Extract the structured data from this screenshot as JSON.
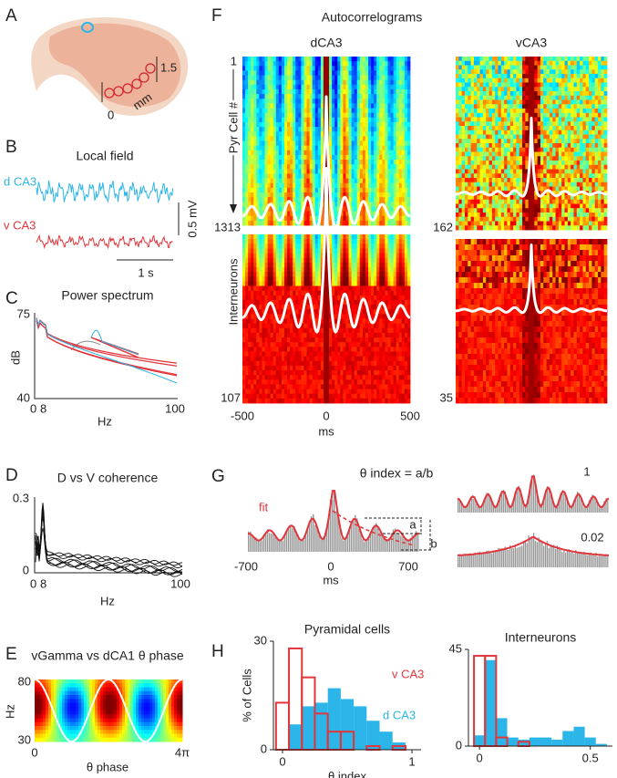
{
  "A": {
    "letter": "A",
    "scale_top": 1.5,
    "scale_bottom": 0,
    "unit": "mm"
  },
  "B": {
    "letter": "B",
    "title": "Local field",
    "dorsal": "d CA3",
    "ventral": "v CA3",
    "amplitude_bar": "0.5 mV",
    "time_bar": "1 s"
  },
  "C": {
    "letter": "C",
    "title": "Power spectrum",
    "ylabel": "dB",
    "y_top": 75,
    "y_bottom": 40,
    "x_ticks": [
      0,
      8,
      100
    ],
    "xlabel": "Hz"
  },
  "D": {
    "letter": "D",
    "title": "D vs V coherence",
    "y_top": 0.3,
    "y_bottom": 0,
    "x_ticks": [
      0,
      8,
      100
    ],
    "xlabel": "Hz"
  },
  "E": {
    "letter": "E",
    "title": "vGamma vs dCA1 θ phase",
    "ylabel": "Hz",
    "y_top": 80,
    "y_bottom": 30,
    "x_start": 0,
    "x_end": "4π",
    "xlabel": "θ phase"
  },
  "F": {
    "letter": "F",
    "title": "Autocorrelograms",
    "left_title": "dCA3",
    "right_title": "vCA3",
    "pyr_label": "Pyr Cell #",
    "int_label": "Interneurons",
    "row_first": 1,
    "dca3_pyr_count": 1313,
    "dca3_int_count": 107,
    "vca3_pyr_count": 162,
    "vca3_int_count": 35,
    "x_ticks": [
      -500,
      0,
      500
    ],
    "xlabel": "ms"
  },
  "G": {
    "letter": "G",
    "formula": "θ index = a/b",
    "fit": "fit",
    "a": "a",
    "b": "b",
    "x_ticks": [
      -700,
      0,
      700
    ],
    "xlabel": "ms",
    "high_index": 1,
    "low_index": 0.02
  },
  "H": {
    "letter": "H",
    "pyramidal": {
      "title": "Pyramidal cells",
      "ylabel": "% of Cells",
      "xlabel": "θ index",
      "xlim": [
        -0.07,
        1.07
      ],
      "ylim": [
        0,
        30
      ],
      "xticks": [
        0,
        1
      ],
      "yticks": [
        0,
        30
      ],
      "bins": [
        -0.05,
        0.05,
        0.15,
        0.25,
        0.35,
        0.45,
        0.55,
        0.65,
        0.75,
        0.85,
        0.95,
        1.05
      ],
      "series": [
        {
          "name": "d CA3",
          "color": "#2bb5e8",
          "values": [
            0,
            7,
            12,
            13,
            17,
            14,
            12,
            8,
            5,
            2,
            0
          ]
        },
        {
          "name": "v CA3",
          "color": "#e0363c",
          "values": [
            13,
            28,
            20,
            10,
            5,
            5,
            0,
            1,
            0,
            1,
            0
          ]
        }
      ]
    },
    "interneurons": {
      "title": "Interneurons",
      "xlim": [
        -0.05,
        0.6
      ],
      "ylim": [
        0,
        45
      ],
      "xticks": [
        0,
        0.5
      ],
      "yticks": [
        0,
        45
      ],
      "bins": [
        -0.025,
        0.025,
        0.075,
        0.125,
        0.175,
        0.225,
        0.275,
        0.325,
        0.375,
        0.425,
        0.475,
        0.525,
        0.575
      ],
      "series": [
        {
          "color": "#2bb5e8",
          "values": [
            5,
            40,
            13,
            4,
            3,
            4,
            4,
            3,
            7,
            9,
            4,
            1
          ]
        },
        {
          "color": "#e0363c",
          "values": [
            42,
            42,
            4,
            0,
            2,
            0,
            0,
            0,
            0,
            0,
            0,
            0
          ]
        }
      ]
    }
  }
}
